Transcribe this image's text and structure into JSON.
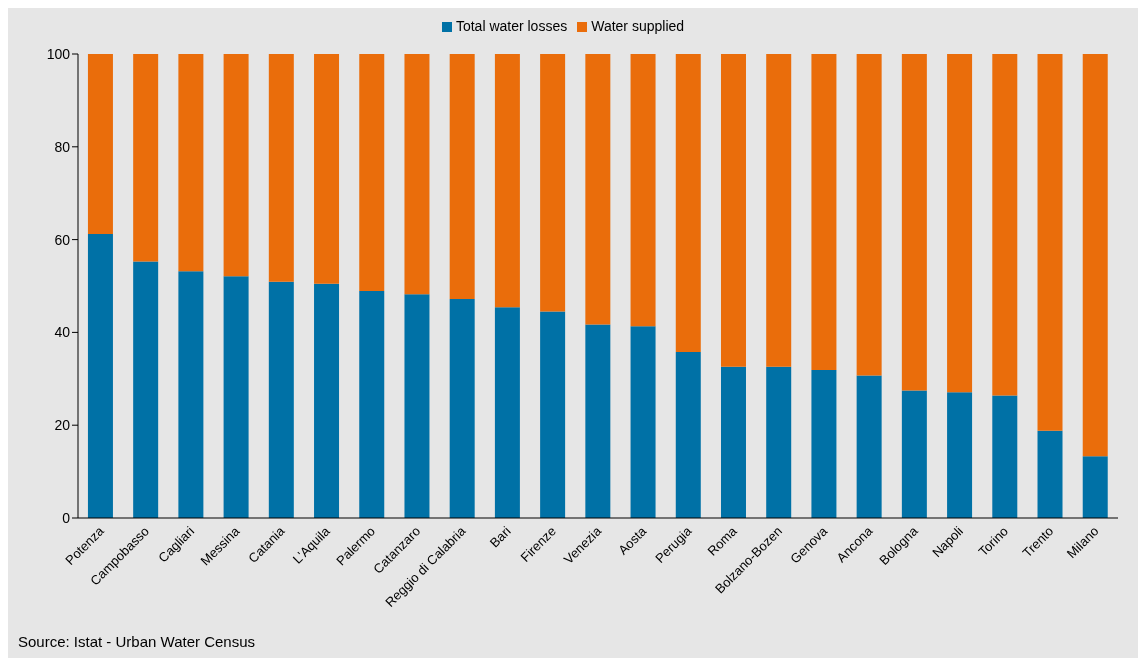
{
  "chart_data": {
    "type": "bar",
    "stacked": true,
    "categories": [
      "Potenza",
      "Campobasso",
      "Cagliari",
      "Messina",
      "Catania",
      "L'Aquila",
      "Palermo",
      "Catanzaro",
      "Reggio di Calabria",
      "Bari",
      "Firenze",
      "Venezia",
      "Aosta",
      "Perugia",
      "Roma",
      "Bolzano-Bozen",
      "Genova",
      "Ancona",
      "Bologna",
      "Napoli",
      "Torino",
      "Trento",
      "Milano"
    ],
    "series": [
      {
        "name": "Total water losses",
        "color": "#0071a6",
        "values": [
          61.2,
          55.3,
          53.2,
          52.1,
          50.9,
          50.5,
          48.9,
          48.2,
          47.2,
          45.4,
          44.5,
          41.7,
          41.3,
          35.8,
          32.6,
          32.6,
          31.9,
          30.7,
          27.5,
          27.1,
          26.4,
          18.8,
          13.3
        ]
      },
      {
        "name": "Water supplied",
        "color": "#ea6d0b",
        "values": [
          38.8,
          44.7,
          46.8,
          47.9,
          49.1,
          49.5,
          51.1,
          51.8,
          52.8,
          54.6,
          55.5,
          58.3,
          58.7,
          64.2,
          67.4,
          67.4,
          68.1,
          69.3,
          72.5,
          72.9,
          73.6,
          81.2,
          86.7
        ]
      }
    ],
    "ylim": [
      0,
      100
    ],
    "yticks": [
      0,
      20,
      40,
      60,
      80,
      100
    ],
    "grid": false,
    "legend": "top",
    "annotations": [
      "Source: Istat - Urban Water Census"
    ]
  }
}
